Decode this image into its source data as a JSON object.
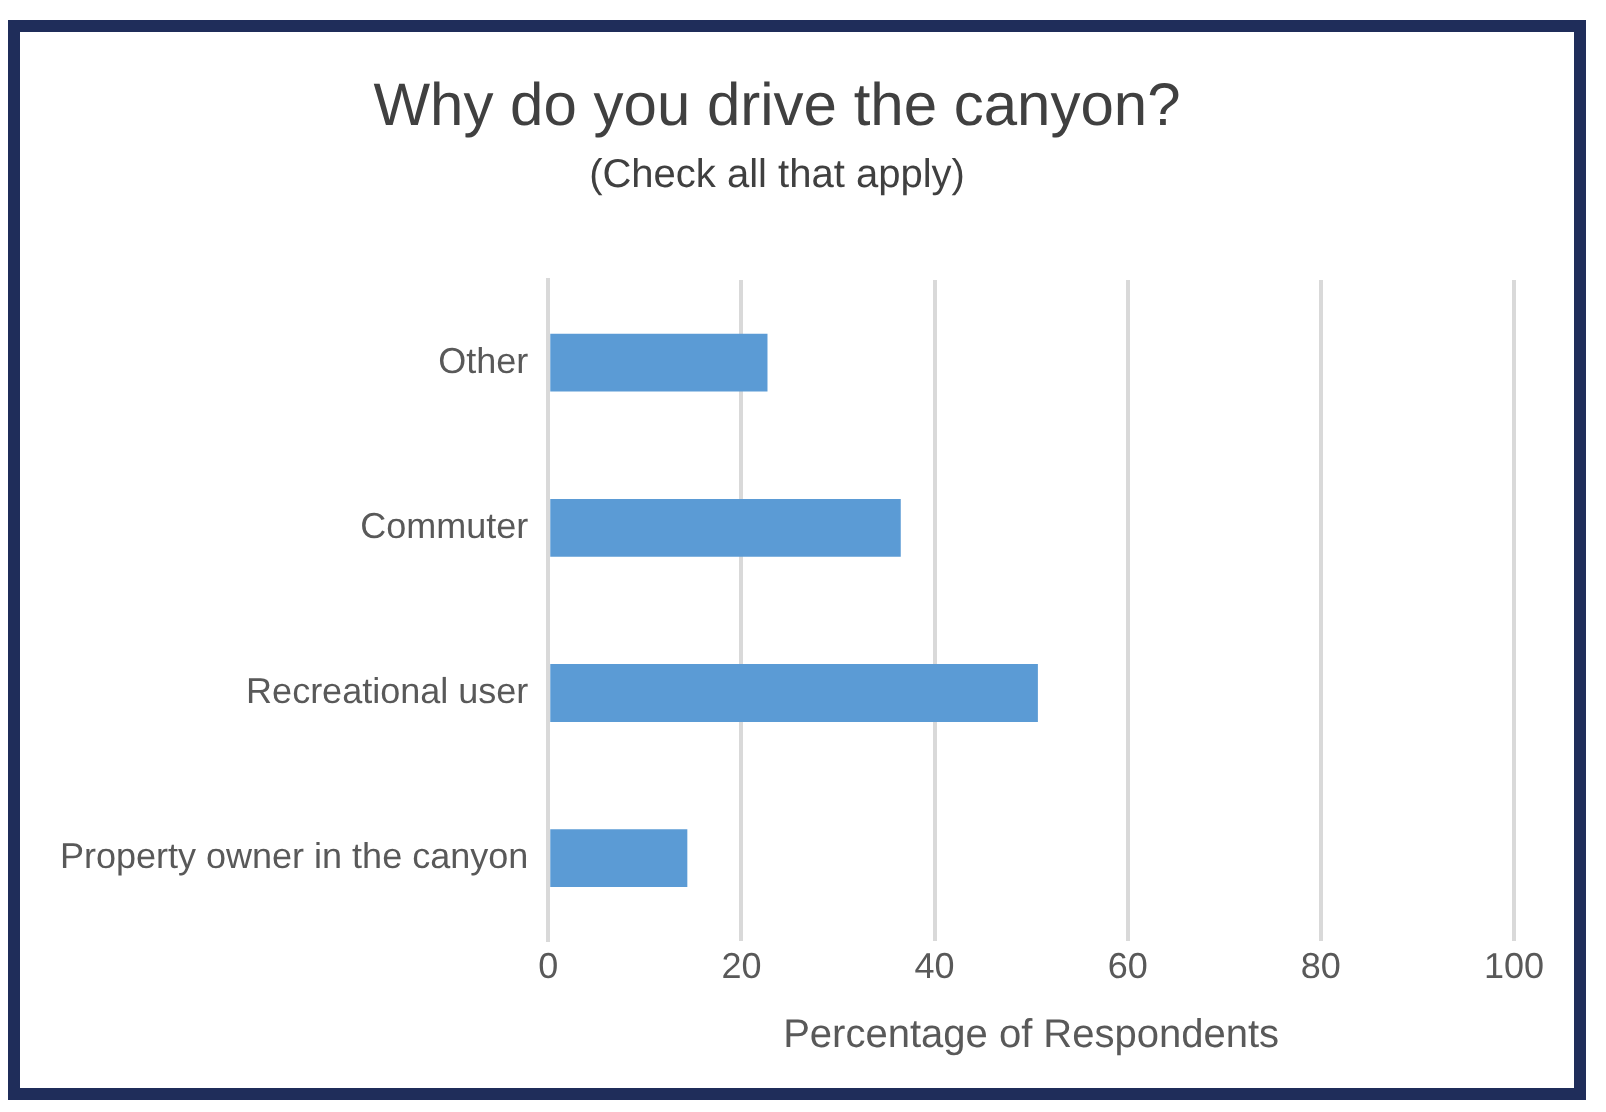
{
  "chart_data": {
    "type": "bar",
    "orientation": "horizontal",
    "title": "Why do you drive the canyon?",
    "subtitle": "(Check all that apply)",
    "xlabel": "Percentage of Respondents",
    "categories": [
      "Other",
      "Commuter",
      "Recreational user",
      "Property owner in the canyon"
    ],
    "values": [
      22.7,
      36.5,
      50.7,
      14.4
    ],
    "color": "#5b9bd5",
    "xlim": [
      0,
      100
    ],
    "xticks": [
      0,
      20,
      40,
      60,
      80,
      100
    ],
    "grid": "x",
    "legend": false
  }
}
